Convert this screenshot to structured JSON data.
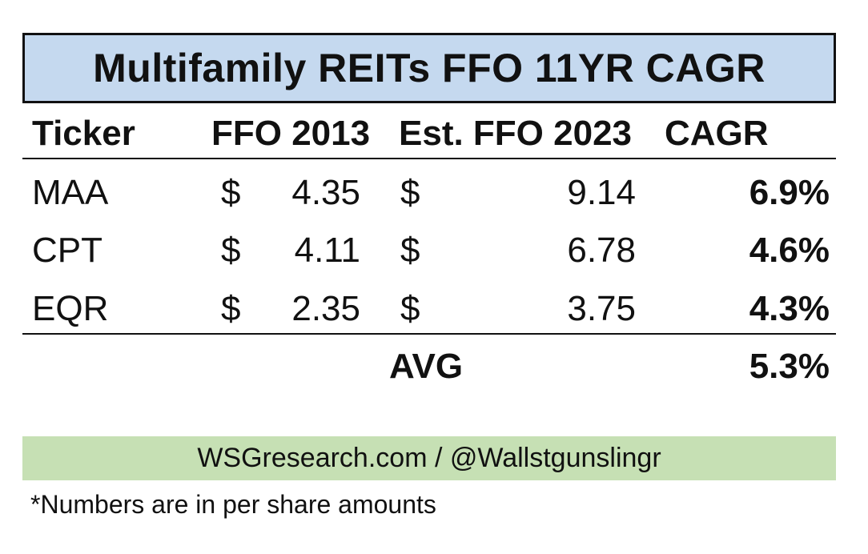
{
  "title": "Multifamily REITs FFO 11YR CAGR",
  "headers": {
    "ticker": "Ticker",
    "ffo_2013": "FFO 2013",
    "est_ffo_2023": "Est. FFO 2023",
    "cagr": "CAGR"
  },
  "rows": [
    {
      "ticker": "MAA",
      "cur1": "$",
      "ffo_2013": "4.35",
      "cur2": "$",
      "est_ffo_2023": "9.14",
      "cagr": "6.9%"
    },
    {
      "ticker": "CPT",
      "cur1": "$",
      "ffo_2013": "4.11",
      "cur2": "$",
      "est_ffo_2023": "6.78",
      "cagr": "4.6%"
    },
    {
      "ticker": "EQR",
      "cur1": "$",
      "ffo_2013": "2.35",
      "cur2": "$",
      "est_ffo_2023": "3.75",
      "cagr": "4.3%"
    }
  ],
  "average": {
    "label": "AVG",
    "value": "5.3%"
  },
  "footer": "WSGresearch.com / @Wallstgunslingr",
  "note": "*Numbers are in per share amounts",
  "colors": {
    "title_background": "#c5d9ef",
    "footer_background": "#c6e0b4"
  }
}
